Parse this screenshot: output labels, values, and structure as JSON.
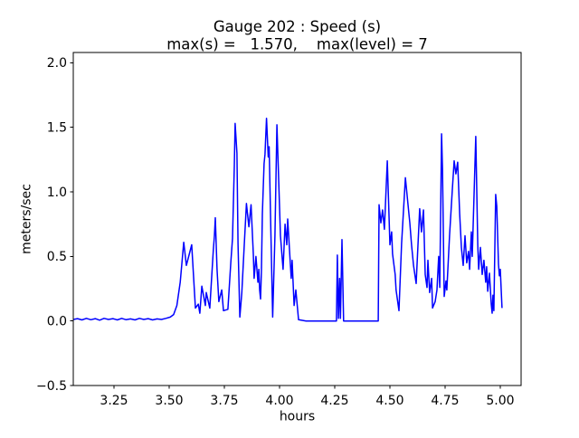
{
  "chart_data": {
    "type": "line",
    "title": "Gauge 202 : Speed (s)",
    "subtitle": "max(s) =   1.570,    max(level) = 7",
    "xlabel": "hours",
    "ylabel": "meters/sec",
    "xlim": [
      3.0656,
      5.0943
    ],
    "ylim": [
      -0.5,
      2.08
    ],
    "x_ticks": [
      3.25,
      3.5,
      3.75,
      4.0,
      4.25,
      4.5,
      4.75,
      5.0
    ],
    "x_tick_labels": [
      "3.25",
      "3.50",
      "3.75",
      "4.00",
      "4.25",
      "4.50",
      "4.75",
      "5.00"
    ],
    "y_ticks": [
      -0.5,
      0.0,
      0.5,
      1.0,
      1.5,
      2.0
    ],
    "y_tick_labels": [
      "−0.5",
      "0.0",
      "0.5",
      "1.0",
      "1.5",
      "2.0"
    ],
    "grid": false,
    "legend": null,
    "line_color": "#0000ff",
    "stats": {
      "max_s": 1.57,
      "max_level": 7
    },
    "series": [
      {
        "name": "Speed (s)",
        "points": [
          [
            3.066,
            0.012
          ],
          [
            3.085,
            0.018
          ],
          [
            3.105,
            0.008
          ],
          [
            3.125,
            0.02
          ],
          [
            3.145,
            0.01
          ],
          [
            3.165,
            0.018
          ],
          [
            3.185,
            0.006
          ],
          [
            3.205,
            0.02
          ],
          [
            3.225,
            0.012
          ],
          [
            3.245,
            0.018
          ],
          [
            3.265,
            0.008
          ],
          [
            3.285,
            0.02
          ],
          [
            3.305,
            0.01
          ],
          [
            3.325,
            0.016
          ],
          [
            3.345,
            0.008
          ],
          [
            3.365,
            0.02
          ],
          [
            3.385,
            0.012
          ],
          [
            3.405,
            0.018
          ],
          [
            3.425,
            0.008
          ],
          [
            3.445,
            0.016
          ],
          [
            3.465,
            0.012
          ],
          [
            3.485,
            0.02
          ],
          [
            3.505,
            0.03
          ],
          [
            3.52,
            0.05
          ],
          [
            3.535,
            0.12
          ],
          [
            3.55,
            0.3
          ],
          [
            3.566,
            0.61
          ],
          [
            3.578,
            0.43
          ],
          [
            3.602,
            0.59
          ],
          [
            3.619,
            0.1
          ],
          [
            3.632,
            0.13
          ],
          [
            3.639,
            0.06
          ],
          [
            3.648,
            0.27
          ],
          [
            3.664,
            0.12
          ],
          [
            3.668,
            0.22
          ],
          [
            3.684,
            0.1
          ],
          [
            3.7,
            0.55
          ],
          [
            3.705,
            0.66
          ],
          [
            3.709,
            0.8
          ],
          [
            3.717,
            0.4
          ],
          [
            3.725,
            0.15
          ],
          [
            3.738,
            0.24
          ],
          [
            3.746,
            0.08
          ],
          [
            3.766,
            0.09
          ],
          [
            3.779,
            0.45
          ],
          [
            3.787,
            0.64
          ],
          [
            3.795,
            1.2
          ],
          [
            3.799,
            1.53
          ],
          [
            3.807,
            1.3
          ],
          [
            3.812,
            0.6
          ],
          [
            3.82,
            0.03
          ],
          [
            3.829,
            0.22
          ],
          [
            3.84,
            0.59
          ],
          [
            3.85,
            0.91
          ],
          [
            3.861,
            0.73
          ],
          [
            3.871,
            0.9
          ],
          [
            3.881,
            0.52
          ],
          [
            3.885,
            0.33
          ],
          [
            3.893,
            0.5
          ],
          [
            3.902,
            0.3
          ],
          [
            3.906,
            0.4
          ],
          [
            3.91,
            0.24
          ],
          [
            3.914,
            0.17
          ],
          [
            3.918,
            0.4
          ],
          [
            3.922,
            0.83
          ],
          [
            3.93,
            1.22
          ],
          [
            3.934,
            1.29
          ],
          [
            3.941,
            1.57
          ],
          [
            3.949,
            1.27
          ],
          [
            3.953,
            1.35
          ],
          [
            3.961,
            0.66
          ],
          [
            3.969,
            0.03
          ],
          [
            3.979,
            0.66
          ],
          [
            3.988,
            1.52
          ],
          [
            4.0,
            0.88
          ],
          [
            4.004,
            0.66
          ],
          [
            4.016,
            0.4
          ],
          [
            4.025,
            0.75
          ],
          [
            4.033,
            0.59
          ],
          [
            4.037,
            0.79
          ],
          [
            4.045,
            0.55
          ],
          [
            4.053,
            0.33
          ],
          [
            4.057,
            0.47
          ],
          [
            4.066,
            0.12
          ],
          [
            4.074,
            0.24
          ],
          [
            4.086,
            0.01
          ],
          [
            4.12,
            0.0
          ],
          [
            4.18,
            0.0
          ],
          [
            4.24,
            0.0
          ],
          [
            4.258,
            0.0
          ],
          [
            4.262,
            0.51
          ],
          [
            4.267,
            0.02
          ],
          [
            4.272,
            0.33
          ],
          [
            4.276,
            0.02
          ],
          [
            4.283,
            0.63
          ],
          [
            4.29,
            0.0
          ],
          [
            4.35,
            0.0
          ],
          [
            4.42,
            0.0
          ],
          [
            4.447,
            0.0
          ],
          [
            4.451,
            0.9
          ],
          [
            4.459,
            0.76
          ],
          [
            4.467,
            0.86
          ],
          [
            4.475,
            0.71
          ],
          [
            4.488,
            1.24
          ],
          [
            4.5,
            0.59
          ],
          [
            4.508,
            0.69
          ],
          [
            4.512,
            0.52
          ],
          [
            4.524,
            0.36
          ],
          [
            4.528,
            0.24
          ],
          [
            4.541,
            0.08
          ],
          [
            4.553,
            0.6
          ],
          [
            4.57,
            1.11
          ],
          [
            4.586,
            0.83
          ],
          [
            4.59,
            0.76
          ],
          [
            4.598,
            0.59
          ],
          [
            4.607,
            0.43
          ],
          [
            4.619,
            0.29
          ],
          [
            4.635,
            0.87
          ],
          [
            4.643,
            0.69
          ],
          [
            4.652,
            0.86
          ],
          [
            4.66,
            0.36
          ],
          [
            4.668,
            0.26
          ],
          [
            4.672,
            0.47
          ],
          [
            4.68,
            0.22
          ],
          [
            4.689,
            0.33
          ],
          [
            4.693,
            0.1
          ],
          [
            4.705,
            0.15
          ],
          [
            4.713,
            0.24
          ],
          [
            4.721,
            0.5
          ],
          [
            4.726,
            0.26
          ],
          [
            4.734,
            1.45
          ],
          [
            4.738,
            1.18
          ],
          [
            4.746,
            0.19
          ],
          [
            4.754,
            0.31
          ],
          [
            4.758,
            0.24
          ],
          [
            4.77,
            0.66
          ],
          [
            4.783,
            1.02
          ],
          [
            4.791,
            1.24
          ],
          [
            4.799,
            1.14
          ],
          [
            4.807,
            1.23
          ],
          [
            4.816,
            0.83
          ],
          [
            4.824,
            0.57
          ],
          [
            4.832,
            0.43
          ],
          [
            4.84,
            0.66
          ],
          [
            4.848,
            0.45
          ],
          [
            4.856,
            0.54
          ],
          [
            4.861,
            0.4
          ],
          [
            4.869,
            0.69
          ],
          [
            4.873,
            0.5
          ],
          [
            4.889,
            1.43
          ],
          [
            4.898,
            0.59
          ],
          [
            4.902,
            0.4
          ],
          [
            4.91,
            0.57
          ],
          [
            4.918,
            0.36
          ],
          [
            4.926,
            0.47
          ],
          [
            4.934,
            0.3
          ],
          [
            4.938,
            0.42
          ],
          [
            4.943,
            0.23
          ],
          [
            4.951,
            0.37
          ],
          [
            4.959,
            0.13
          ],
          [
            4.963,
            0.06
          ],
          [
            4.967,
            0.2
          ],
          [
            4.971,
            0.08
          ],
          [
            4.979,
            0.98
          ],
          [
            4.984,
            0.89
          ],
          [
            4.992,
            0.44
          ],
          [
            4.996,
            0.35
          ],
          [
            5.0,
            0.4
          ],
          [
            5.008,
            0.1
          ]
        ]
      }
    ]
  }
}
